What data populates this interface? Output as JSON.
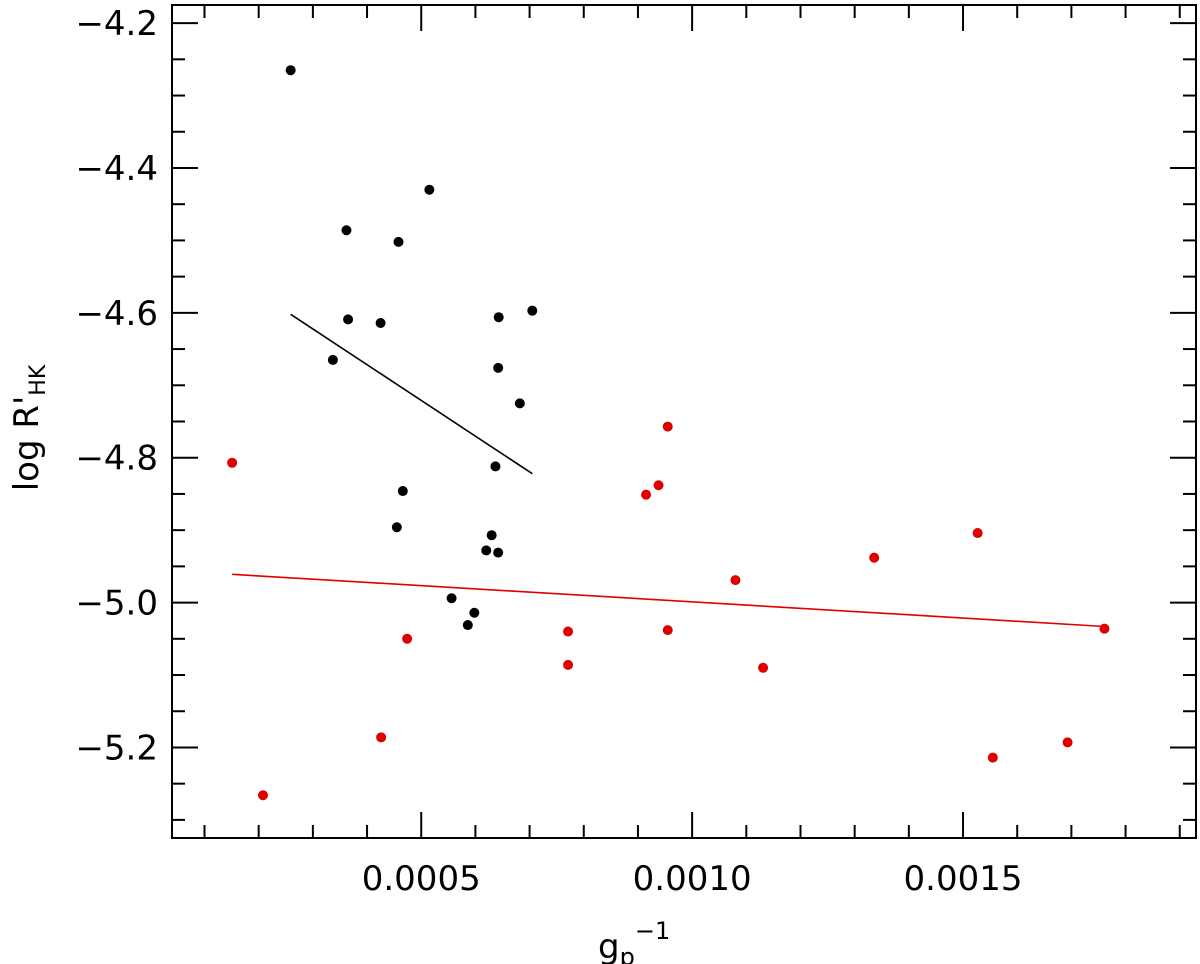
{
  "chart_data": {
    "type": "scatter",
    "xlabel": "g",
    "xlabel_sub": "p",
    "xlabel_sup": "−1",
    "ylabel": "log R'",
    "ylabel_sub": "HK",
    "xlim": [
      4e-05,
      0.00193
    ],
    "ylim": [
      -5.325,
      -4.175
    ],
    "x_ticks": [
      0.0005,
      0.001,
      0.0015
    ],
    "x_tick_labels": [
      "0.0005",
      "0.0010",
      "0.0015"
    ],
    "y_ticks": [
      -4.2,
      -4.4,
      -4.6,
      -4.8,
      -5.0,
      -5.2
    ],
    "y_tick_labels": [
      "−4.2",
      "−4.4",
      "−4.6",
      "−4.8",
      "−5.0",
      "−5.2"
    ],
    "grid": false,
    "series": [
      {
        "color": "#000000",
        "points": [
          [
            0.000259,
            -4.265
          ],
          [
            0.000515,
            -4.43
          ],
          [
            0.000362,
            -4.486
          ],
          [
            0.000458,
            -4.502
          ],
          [
            0.000705,
            -4.597
          ],
          [
            0.000643,
            -4.606
          ],
          [
            0.000365,
            -4.609
          ],
          [
            0.000425,
            -4.614
          ],
          [
            0.000337,
            -4.665
          ],
          [
            0.000642,
            -4.676
          ],
          [
            0.000682,
            -4.725
          ],
          [
            0.000637,
            -4.812
          ],
          [
            0.000466,
            -4.846
          ],
          [
            0.000455,
            -4.896
          ],
          [
            0.00063,
            -4.907
          ],
          [
            0.00062,
            -4.928
          ],
          [
            0.000642,
            -4.931
          ],
          [
            0.000556,
            -4.994
          ],
          [
            0.000598,
            -5.014
          ],
          [
            0.000586,
            -5.031
          ]
        ],
        "fit": [
          [
            0.000259,
            -4.602
          ],
          [
            0.000705,
            -4.822
          ]
        ]
      },
      {
        "color": "#e00000",
        "points": [
          [
            0.000151,
            -4.807
          ],
          [
            0.000955,
            -4.757
          ],
          [
            0.000938,
            -4.838
          ],
          [
            0.000915,
            -4.851
          ],
          [
            0.001527,
            -4.904
          ],
          [
            0.001336,
            -4.938
          ],
          [
            0.00108,
            -4.969
          ],
          [
            0.000955,
            -5.038
          ],
          [
            0.000771,
            -5.04
          ],
          [
            0.000474,
            -5.05
          ],
          [
            0.001761,
            -5.036
          ],
          [
            0.000771,
            -5.086
          ],
          [
            0.001131,
            -5.09
          ],
          [
            0.000426,
            -5.186
          ],
          [
            0.001693,
            -5.193
          ],
          [
            0.001555,
            -5.214
          ],
          [
            0.000208,
            -5.266
          ]
        ],
        "fit": [
          [
            0.000151,
            -4.961
          ],
          [
            0.001761,
            -5.033
          ]
        ]
      }
    ]
  }
}
